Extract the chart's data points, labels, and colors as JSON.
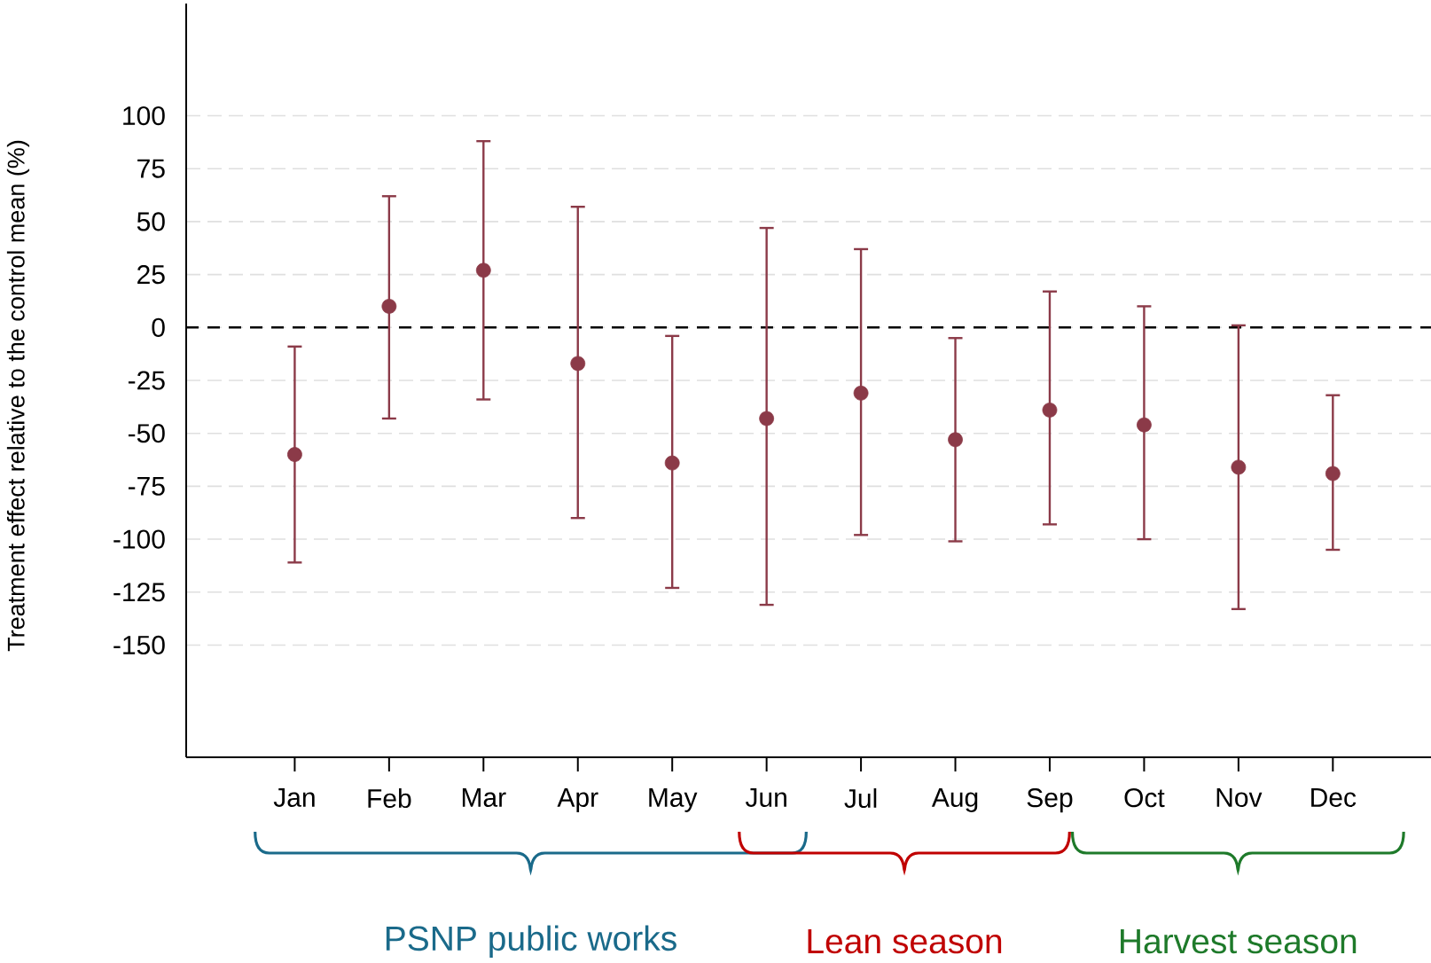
{
  "chart_data": {
    "type": "scatter",
    "ylabel": "Treatment effect relative to the control mean (%)",
    "categories": [
      "Jan",
      "Feb",
      "Mar",
      "Apr",
      "May",
      "Jun",
      "Jul",
      "Aug",
      "Sep",
      "Oct",
      "Nov",
      "Dec"
    ],
    "series": [
      {
        "color": "#8b3a48",
        "values": [
          -60,
          10,
          27,
          -17,
          -64,
          -43,
          -31,
          -53,
          -39,
          -46,
          -66,
          -69
        ],
        "errors": [
          [
            -111,
            -9
          ],
          [
            -43,
            62
          ],
          [
            -34,
            88
          ],
          [
            -90,
            57
          ],
          [
            -123,
            -4
          ],
          [
            -131,
            47
          ],
          [
            -98,
            37
          ],
          [
            -101,
            -5
          ],
          [
            -93,
            17
          ],
          [
            -100,
            10
          ],
          [
            -133,
            1
          ],
          [
            -105,
            -32
          ]
        ]
      }
    ],
    "ylim": [
      -203,
      153
    ],
    "yticks": [
      -150,
      -125,
      -100,
      -75,
      -50,
      -25,
      0,
      25,
      50,
      75,
      100
    ],
    "grid": "y",
    "marker": "circle",
    "ref_lines": [
      {
        "axis": "y",
        "value": 0,
        "color": "#000000",
        "line_style": "dashed"
      }
    ],
    "annotations": [
      "PSNP public works",
      "Lean season",
      "Harvest season"
    ]
  }
}
